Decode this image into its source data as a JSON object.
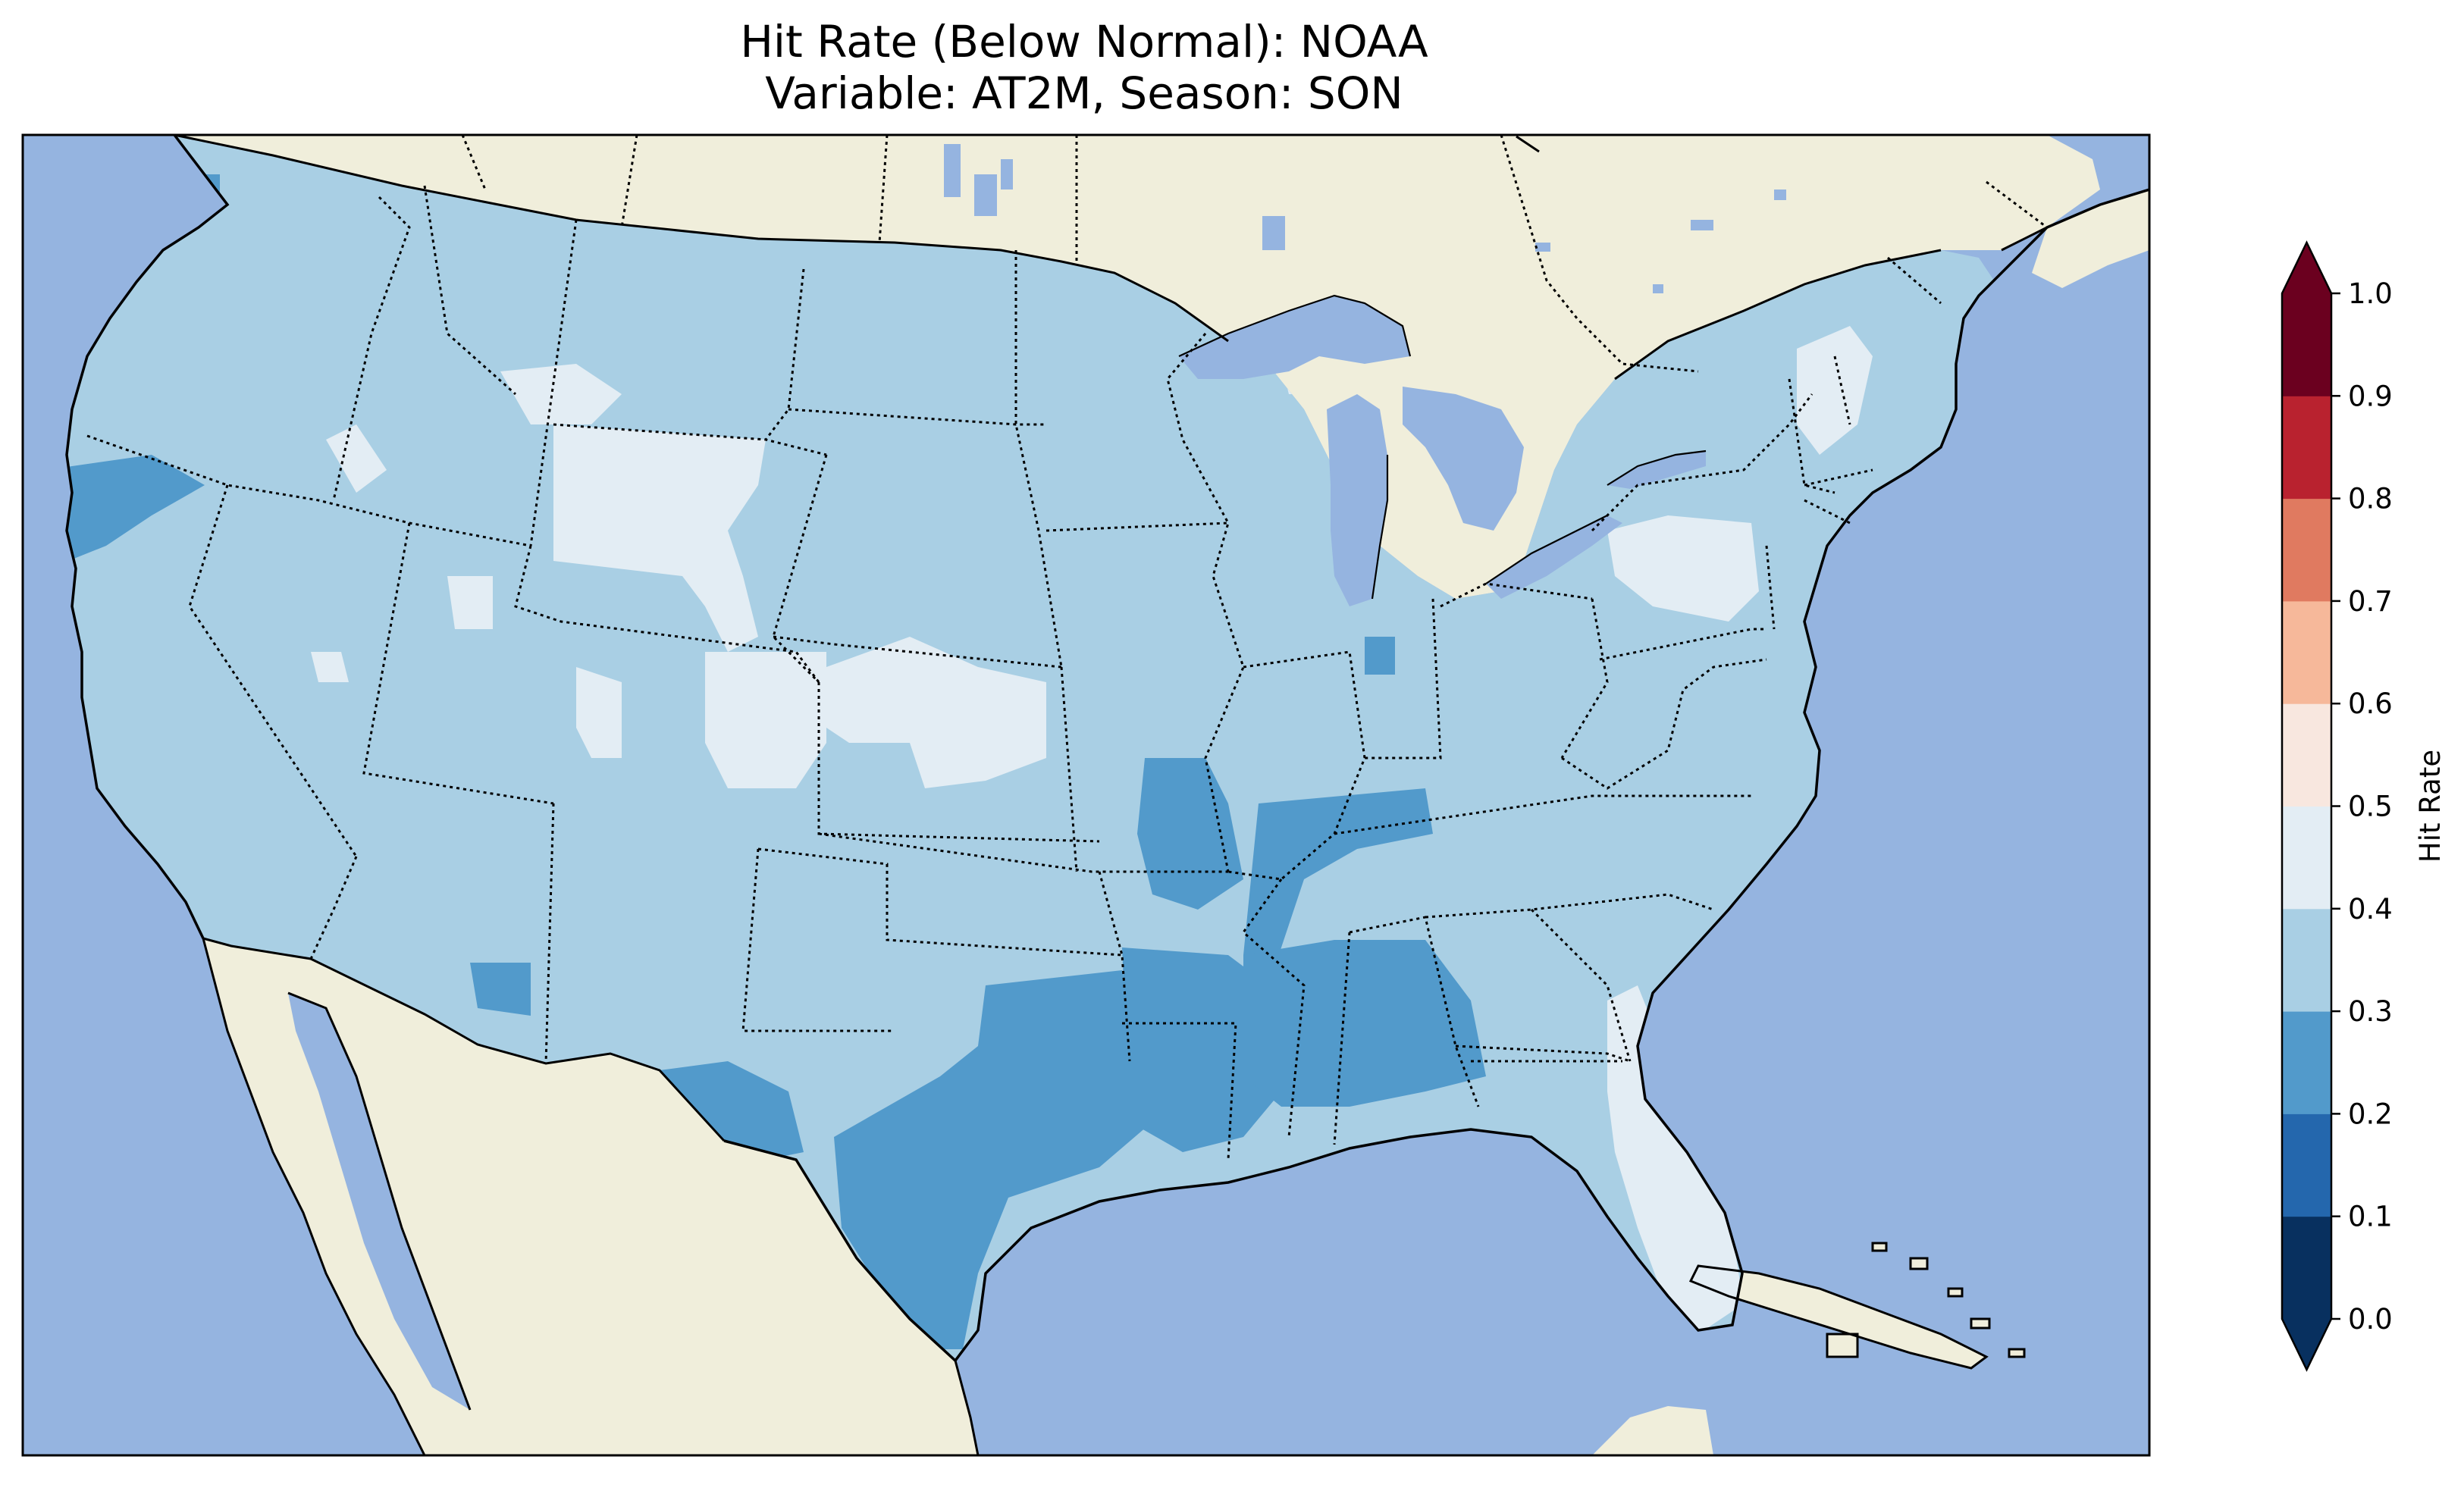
{
  "figure": {
    "title_line1": "Hit Rate (Below Normal): NOAA",
    "title_line2": "Variable: AT2M, Season: SON"
  },
  "colors": {
    "ocean": "#95b4e0",
    "land": "#f0eedb",
    "lakes": "#95b4e0",
    "coast": "#000000"
  },
  "colorbar": {
    "label": "Hit Rate",
    "ticks": [
      "0.0",
      "0.1",
      "0.2",
      "0.3",
      "0.4",
      "0.5",
      "0.6",
      "0.7",
      "0.8",
      "0.9",
      "1.0"
    ],
    "colors": [
      "#053061",
      "#2166ac",
      "#4393c3",
      "#92c5de",
      "#d1e5f0",
      "#f7f7f7",
      "#fddbc7",
      "#f4a582",
      "#d6604d",
      "#b2182b",
      "#67001f"
    ],
    "bin_colors": [
      "#08305f",
      "#2467ad",
      "#529acb",
      "#a9cfe4",
      "#e3edf4",
      "#f8e7df",
      "#f6b89a",
      "#e07a60",
      "#b9222f",
      "#6b001f"
    ],
    "extend": "both"
  },
  "chart_data": {
    "type": "heatmap",
    "title": "Hit Rate (Below Normal): NOAA",
    "subtitle": "Variable: AT2M, Season: SON",
    "colorbar_label": "Hit Rate",
    "value_range": [
      0.0,
      1.0
    ],
    "dominant_bin": "0.3-0.4",
    "regions": [
      {
        "area": "most of contiguous US",
        "bin": "0.3-0.4"
      },
      {
        "area": "Wyoming / northern Colorado / western Kansas",
        "bin": "0.4-0.5"
      },
      {
        "area": "Pennsylvania / southern New York",
        "bin": "0.4-0.5"
      },
      {
        "area": "Florida peninsula",
        "bin": "0.4-0.5"
      },
      {
        "area": "Texas / Louisiana / Arkansas",
        "bin": "0.2-0.3"
      },
      {
        "area": "Mississippi / Alabama",
        "bin": "0.2-0.3"
      },
      {
        "area": "southern Missouri / Tennessee",
        "bin": "0.2-0.3"
      },
      {
        "area": "northern California coast",
        "bin": "0.2-0.3"
      }
    ]
  }
}
